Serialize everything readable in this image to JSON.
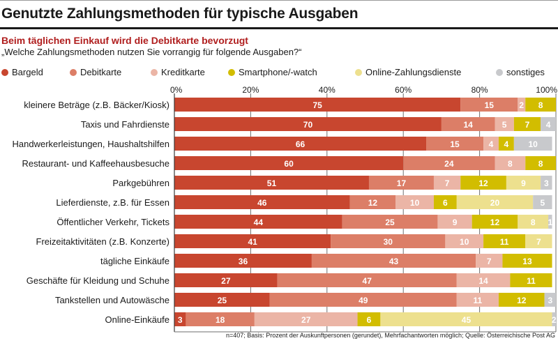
{
  "header": {
    "title": "Genutzte Zahlungsmethoden für typische Ausgaben",
    "subtitle": "Beim täglichen Einkauf wird die Debitkarte bevorzugt",
    "question": "„Welche Zahlungsmethoden nutzen Sie vorrangig für folgende Ausgaben?“"
  },
  "footer": {
    "note": "n=407; Basis: Prozent der Auskunftpersonen (gerundet), Mehrfachantworten möglich; Quelle: Österreichische Post AG"
  },
  "chart_data": {
    "type": "bar",
    "orientation": "horizontal",
    "stacked": true,
    "title": "Genutzte Zahlungsmethoden für typische Ausgaben",
    "subtitle": "Beim täglichen Einkauf wird die Debitkarte bevorzugt",
    "xlabel": "",
    "ylabel": "",
    "xlim": [
      0,
      100
    ],
    "x_ticks": [
      "0%",
      "20%",
      "40%",
      "60%",
      "80%",
      "100%"
    ],
    "x_tick_values": [
      0,
      20,
      40,
      60,
      80,
      100
    ],
    "grid": true,
    "legend_position": "top",
    "categories": [
      "kleinere Beträge (z.B. Bäcker/Kiosk)",
      "Taxis und Fahrdienste",
      "Handwerkerleistungen, Haushaltshilfen",
      "Restaurant- und Kaffeehausbesuche",
      "Parkgebühren",
      "Lieferdienste, z.B. für Essen",
      "Öffentlicher Verkehr, Tickets",
      "Freizeitaktivitäten (z.B. Konzerte)",
      "tägliche Einkäufe",
      "Geschäfte für Kleidung und Schuhe",
      "Tankstellen und Autowäsche",
      "Online-Einkäufe"
    ],
    "series": [
      {
        "name": "Bargeld",
        "color": "#c8462f",
        "values": [
          75,
          70,
          66,
          60,
          51,
          46,
          44,
          41,
          36,
          27,
          25,
          3
        ]
      },
      {
        "name": "Debitkarte",
        "color": "#dc7e67",
        "values": [
          15,
          14,
          15,
          24,
          17,
          12,
          25,
          30,
          43,
          47,
          49,
          18
        ]
      },
      {
        "name": "Kreditkarte",
        "color": "#ebb5a6",
        "values": [
          2,
          5,
          4,
          8,
          7,
          10,
          9,
          10,
          7,
          14,
          11,
          27
        ]
      },
      {
        "name": "Smartphone/-watch",
        "color": "#d2bd00",
        "values": [
          8,
          7,
          4,
          8,
          12,
          6,
          12,
          11,
          13,
          11,
          12,
          6
        ]
      },
      {
        "name": "Online-Zahlungsdienste",
        "color": "#ede08e",
        "values": [
          0,
          0,
          0,
          0,
          9,
          20,
          8,
          7,
          0,
          0,
          0,
          45
        ]
      },
      {
        "name": "sonstiges",
        "color": "#c8c9cc",
        "values": [
          0,
          4,
          10,
          0,
          3,
          5,
          1,
          0,
          0,
          0,
          3,
          2
        ]
      }
    ],
    "source": "Österreichische Post AG"
  }
}
